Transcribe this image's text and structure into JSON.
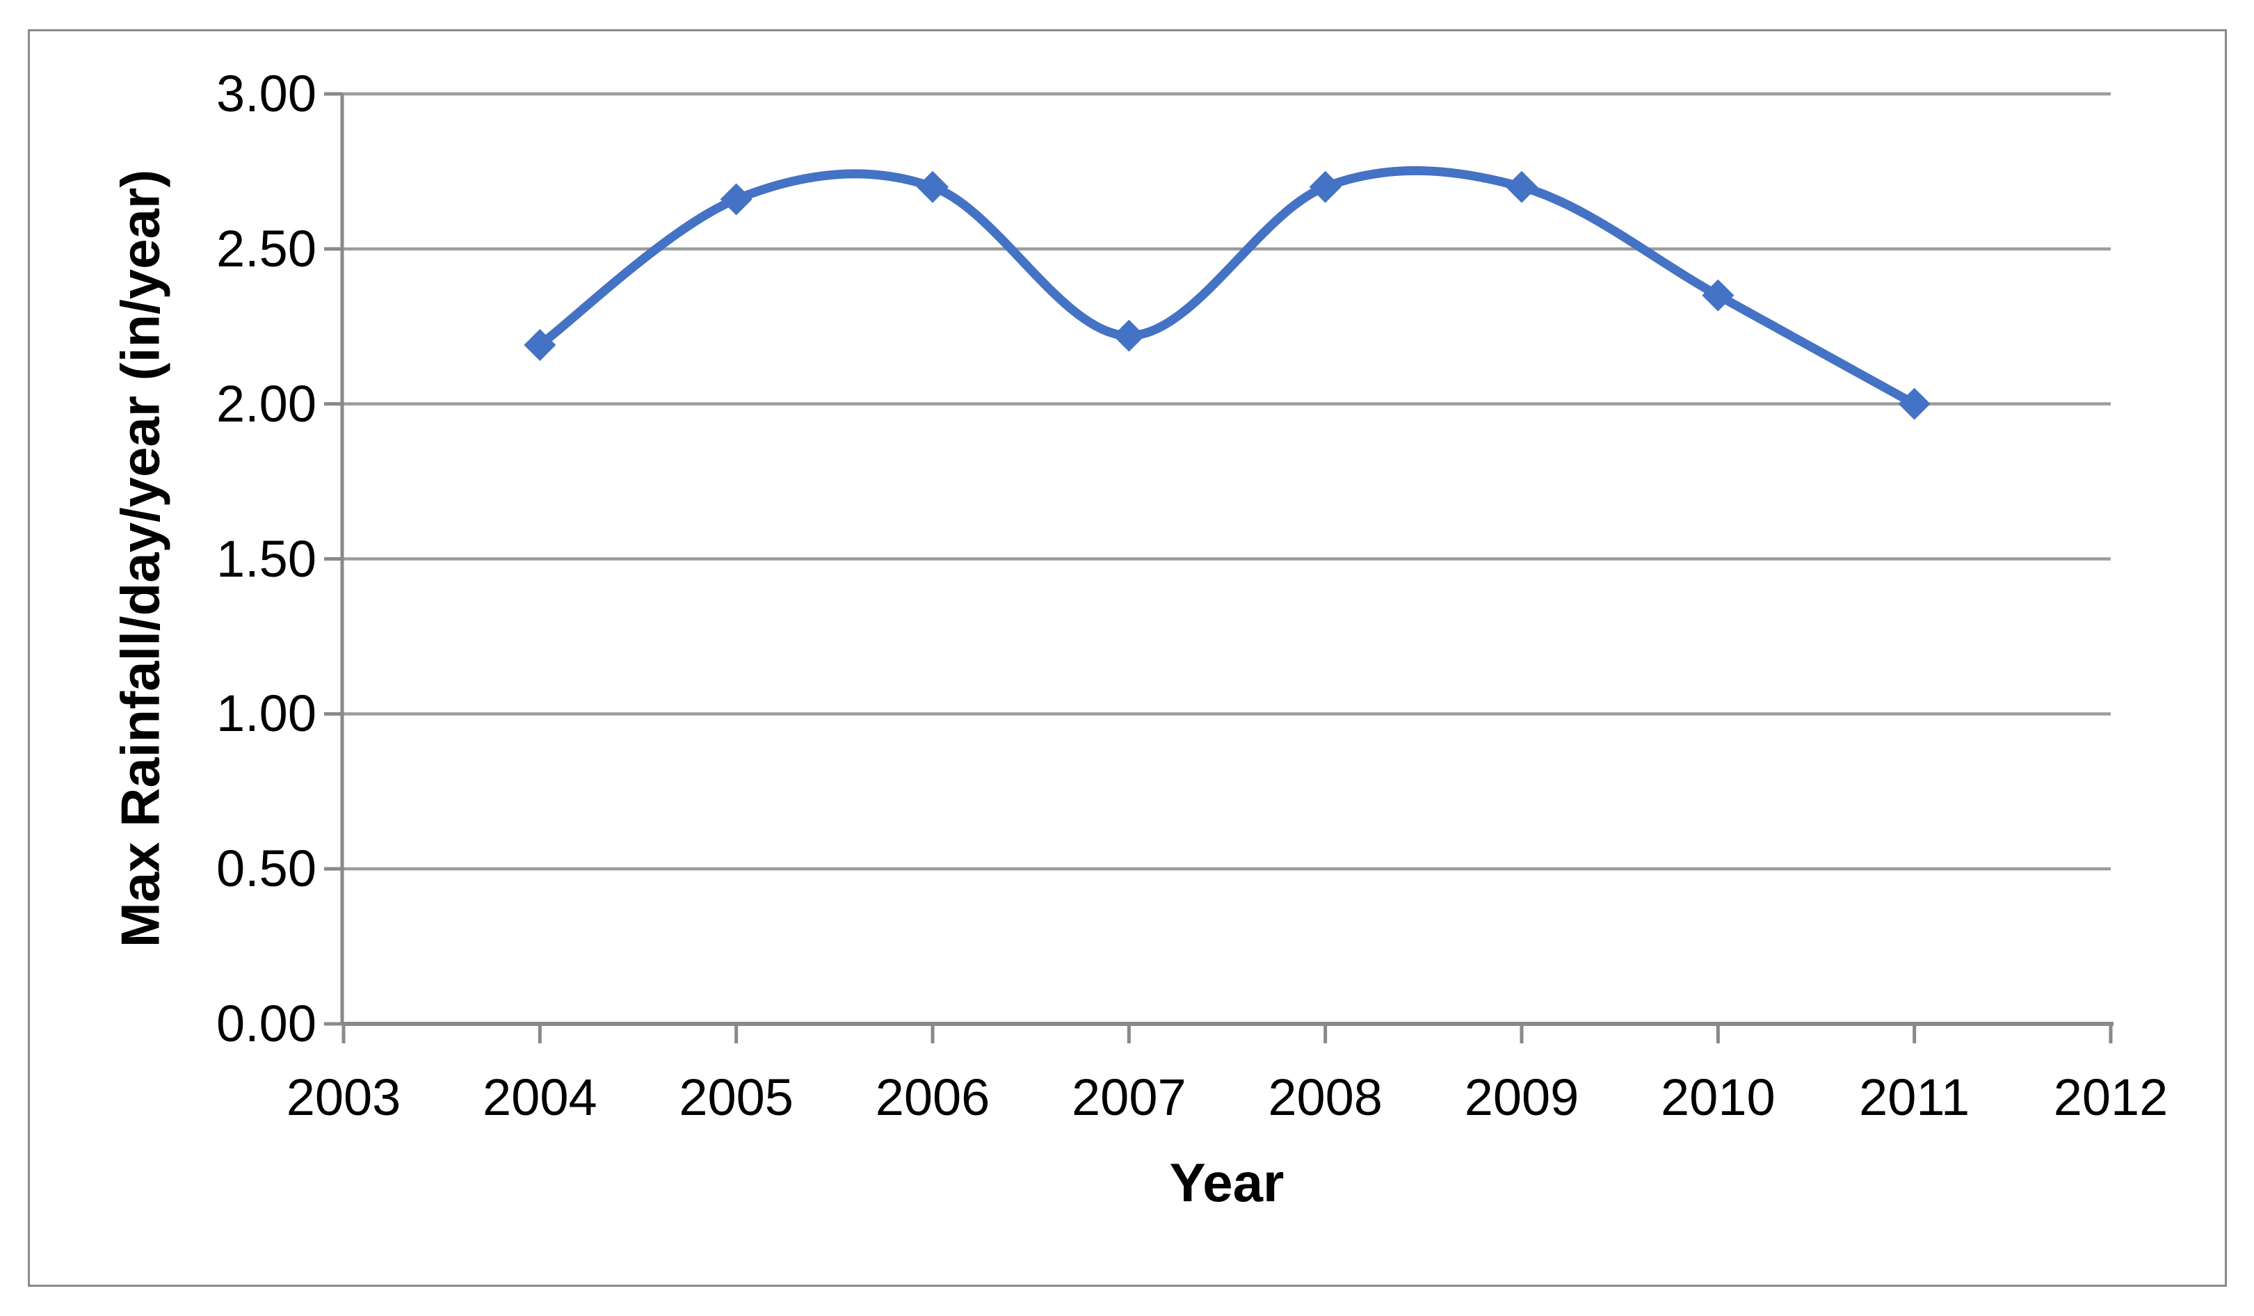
{
  "chart_data": {
    "type": "line",
    "title": "",
    "xlabel": "Year",
    "ylabel": "Max Rainfall/day/year (in/year)",
    "x": [
      2004,
      2005,
      2006,
      2007,
      2008,
      2009,
      2010,
      2011
    ],
    "values": [
      2.19,
      2.66,
      2.7,
      2.22,
      2.7,
      2.7,
      2.35,
      2.0
    ],
    "x_tick_labels": [
      "2003",
      "2004",
      "2005",
      "2006",
      "2007",
      "2008",
      "2009",
      "2010",
      "2011",
      "2012"
    ],
    "x_tick_values": [
      2003,
      2004,
      2005,
      2006,
      2007,
      2008,
      2009,
      2010,
      2011,
      2012
    ],
    "y_tick_labels": [
      "0.00",
      "0.50",
      "1.00",
      "1.50",
      "2.00",
      "2.50",
      "3.00"
    ],
    "y_tick_values": [
      0,
      0.5,
      1.0,
      1.5,
      2.0,
      2.5,
      3.0
    ],
    "xlim": [
      2003,
      2012
    ],
    "ylim": [
      0,
      3
    ],
    "grid": true,
    "legend": "none",
    "smooth": true,
    "marker": "diamond",
    "colors": {
      "line": "#4472C4",
      "marker": "#4472C4",
      "gridline": "#9c9c9c",
      "axis": "#898989",
      "border": "#8a8a8a",
      "text": "#000000"
    }
  }
}
